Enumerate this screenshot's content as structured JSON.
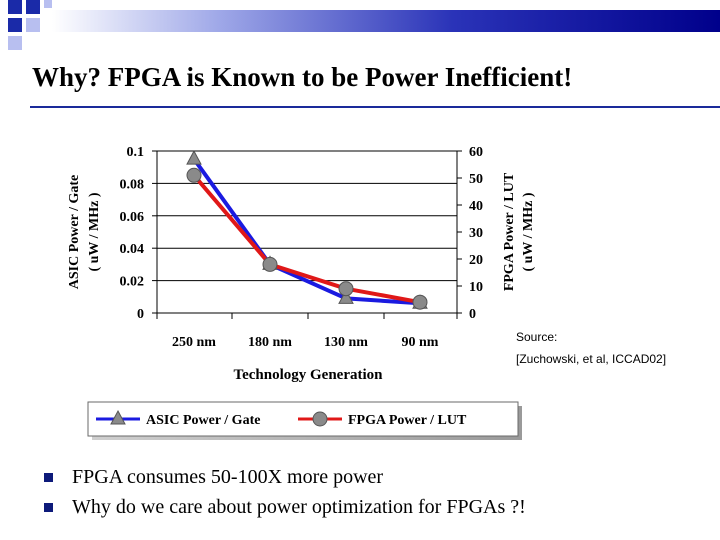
{
  "slide": {
    "title": "Why? FPGA is Known to be Power Inefficient!",
    "source_line1": "Source:",
    "source_line2": "[Zuchowski, et al, ICCAD02]",
    "bullets": [
      "FPGA consumes 50-100X more power",
      "Why do we care about power optimization for FPGAs ?!"
    ],
    "colors": {
      "accent": "#1a2a9a",
      "asic_series": "#1a1ae0",
      "fpga_series": "#e01818"
    }
  },
  "chart_data": {
    "type": "line",
    "title": "",
    "xlabel": "Technology Generation",
    "ylabel_left": "ASIC Power / Gate",
    "ylabel_left_unit": "( uW / MHz )",
    "ylabel_right": "FPGA Power / LUT",
    "ylabel_right_unit": "( uW / MHz )",
    "categories": [
      "250 nm",
      "180 nm",
      "130 nm",
      "90 nm"
    ],
    "ylim_left": [
      0,
      0.1
    ],
    "ylim_right": [
      0,
      60
    ],
    "left_ticks": [
      "0",
      "0.02",
      "0.04",
      "0.06",
      "0.08",
      "0.1"
    ],
    "right_ticks": [
      "0",
      "10",
      "20",
      "30",
      "40",
      "50",
      "60"
    ],
    "grid": true,
    "legend_position": "bottom",
    "series": [
      {
        "name": "ASIC Power / Gate",
        "axis": "left",
        "marker": "triangle",
        "values": [
          0.095,
          0.03,
          0.009,
          0.006
        ]
      },
      {
        "name": "FPGA Power / LUT",
        "axis": "right",
        "marker": "circle",
        "values": [
          51,
          18,
          9,
          4
        ]
      }
    ]
  }
}
